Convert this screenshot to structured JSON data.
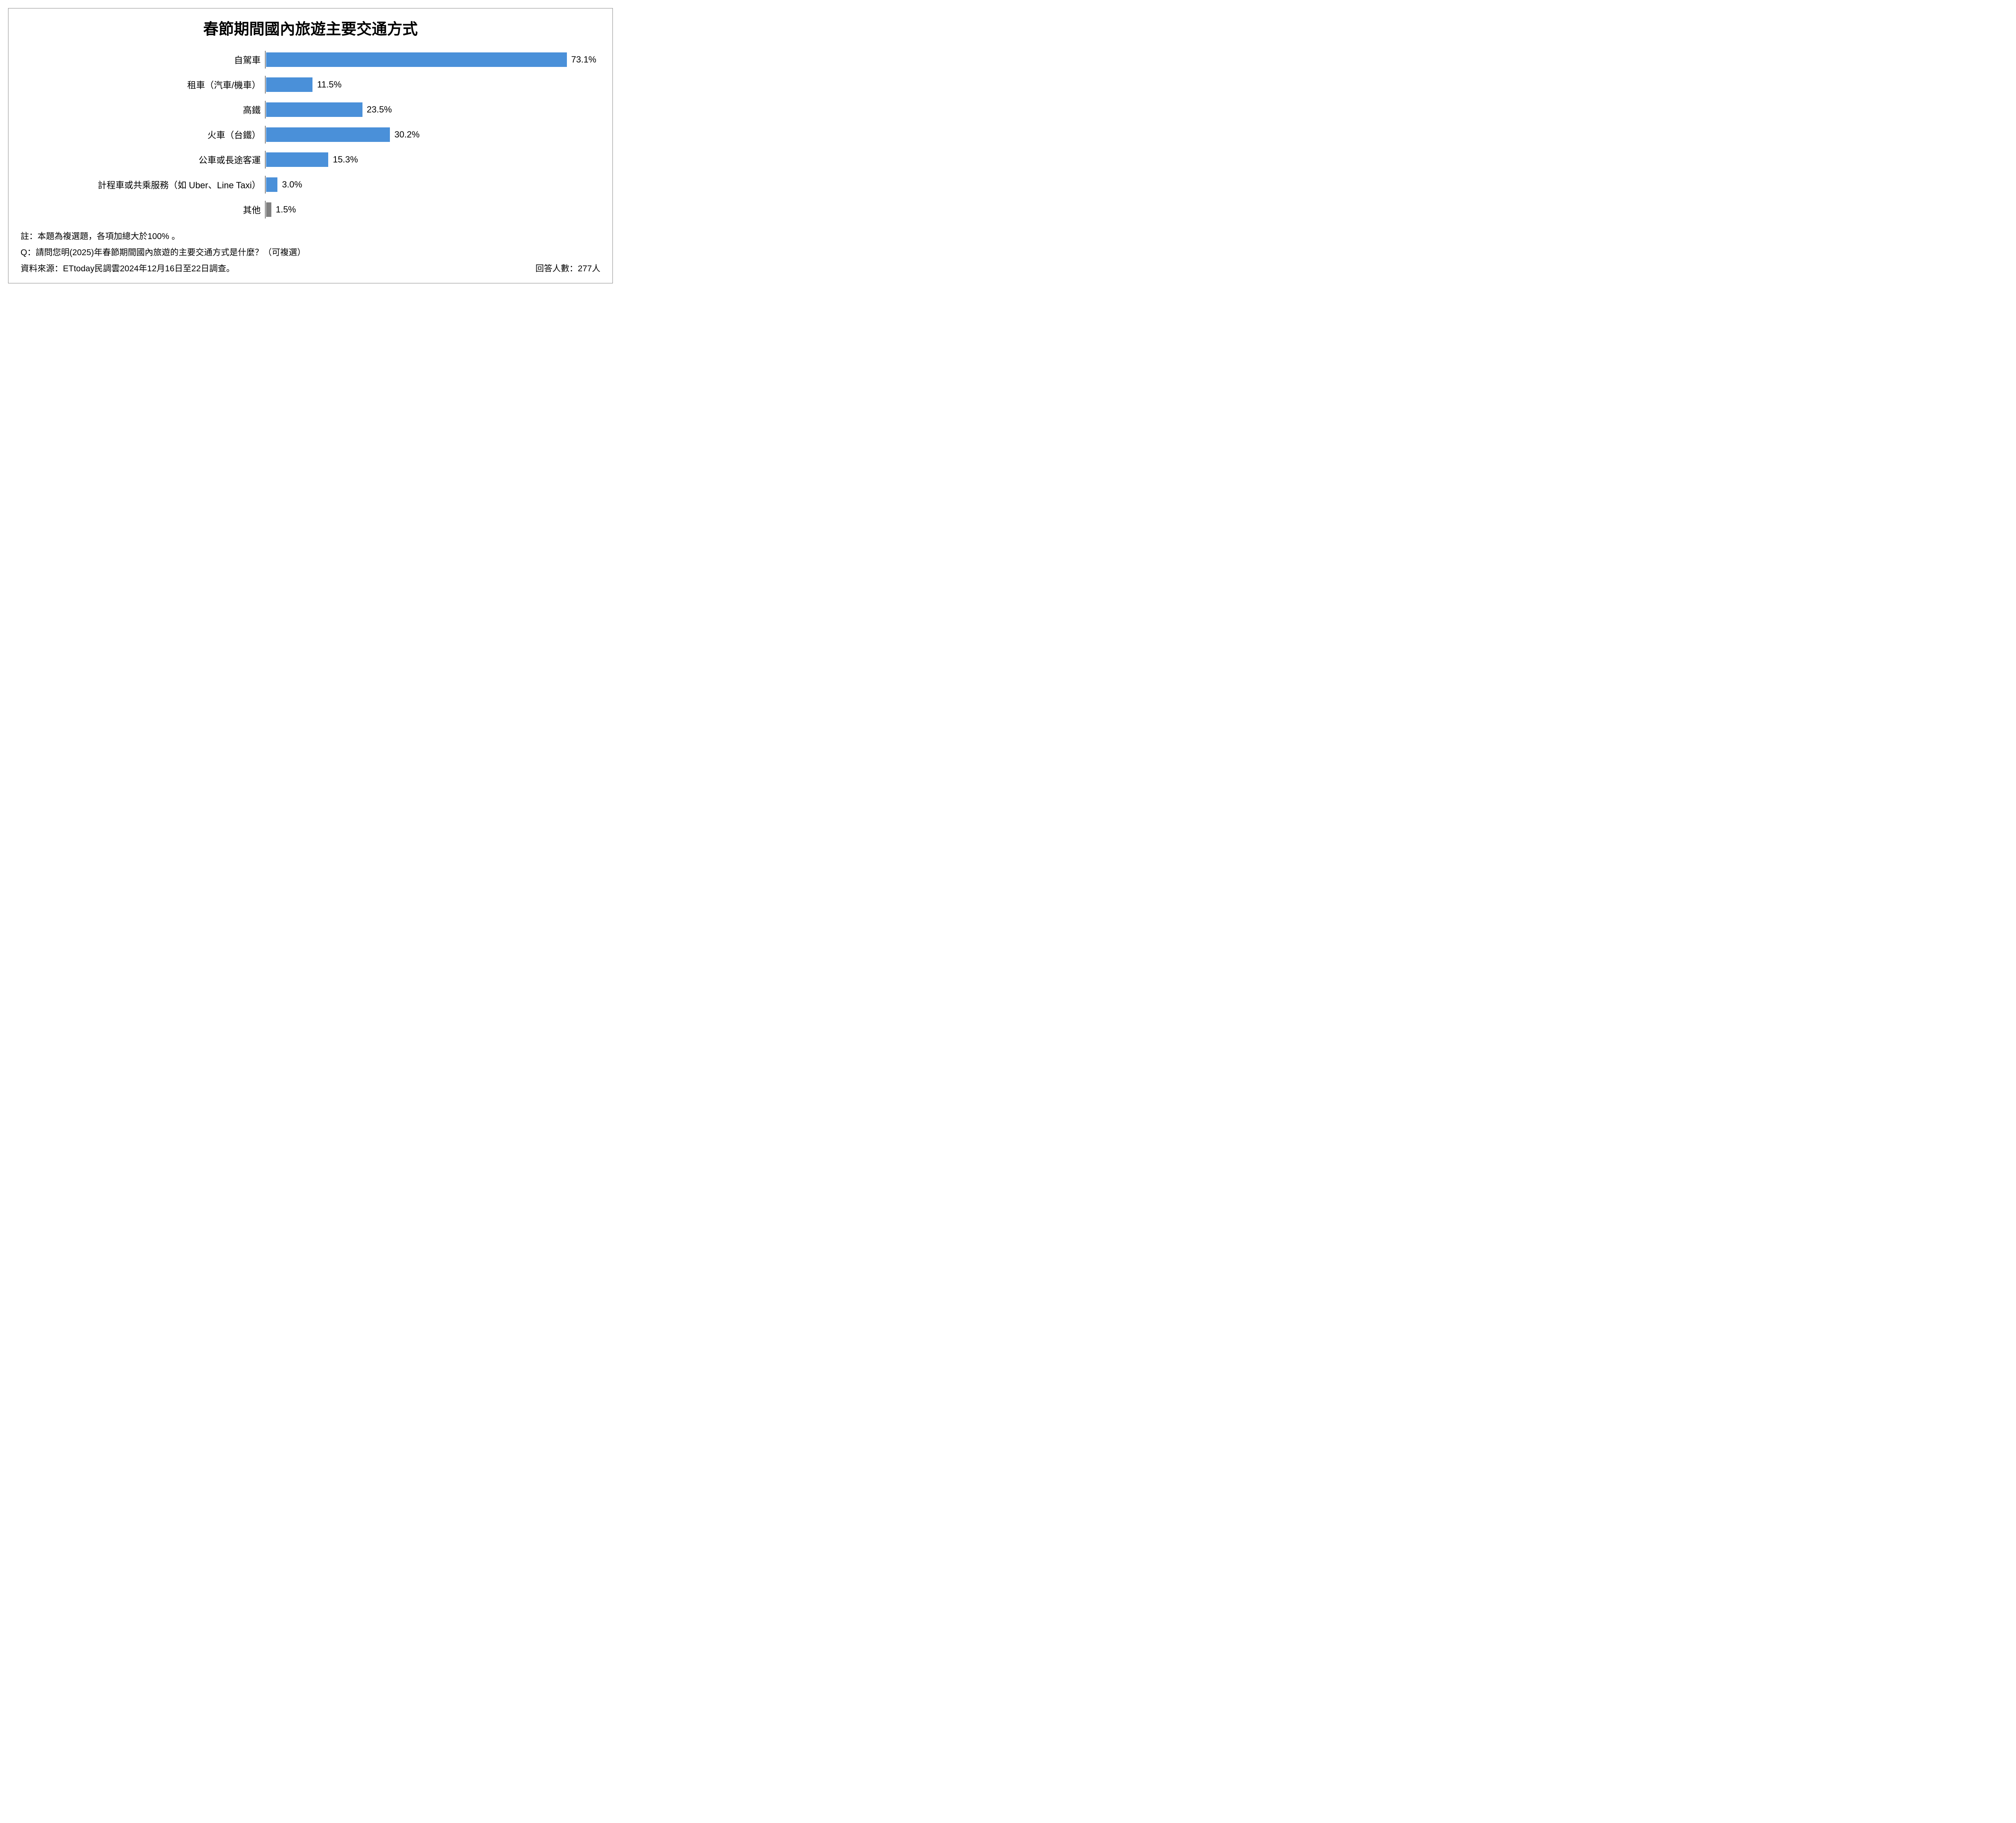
{
  "chart": {
    "type": "horizontal-bar",
    "title": "春節期間國內旅遊主要交通方式",
    "title_fontsize": 38,
    "title_color": "#000000",
    "categories": [
      "自駕車",
      "租車（汽車/機車）",
      "高鐵",
      "火車（台鐵）",
      "公車或長途客運",
      "計程車或共乘服務（如 Uber、Line Taxi）",
      "其他"
    ],
    "values": [
      73.1,
      11.5,
      23.5,
      30.2,
      15.3,
      3.0,
      1.5
    ],
    "value_labels": [
      "73.1%",
      "11.5%",
      "23.5%",
      "30.2%",
      "15.3%",
      "3.0%",
      "1.5%"
    ],
    "bar_colors": [
      "#4a90d9",
      "#4a90d9",
      "#4a90d9",
      "#4a90d9",
      "#4a90d9",
      "#4a90d9",
      "#808080"
    ],
    "bar_border": "#ffffff",
    "axis_line_color": "#808080",
    "category_label_fontsize": 22,
    "value_label_fontsize": 22,
    "category_label_width_pct": 42,
    "xlim": [
      0,
      80
    ],
    "background_color": "#ffffff",
    "container_border_color": "#888888"
  },
  "footer": {
    "note": "註：本題為複選題，各項加總大於100% 。",
    "question": "Q：請問您明(2025)年春節期間國內旅遊的主要交通方式是什麼？（可複選）",
    "source": "資料來源：ETtoday民調雲2024年12月16日至22日調查。",
    "respondents": "回答人數：277人",
    "fontsize": 21,
    "color": "#000000"
  }
}
